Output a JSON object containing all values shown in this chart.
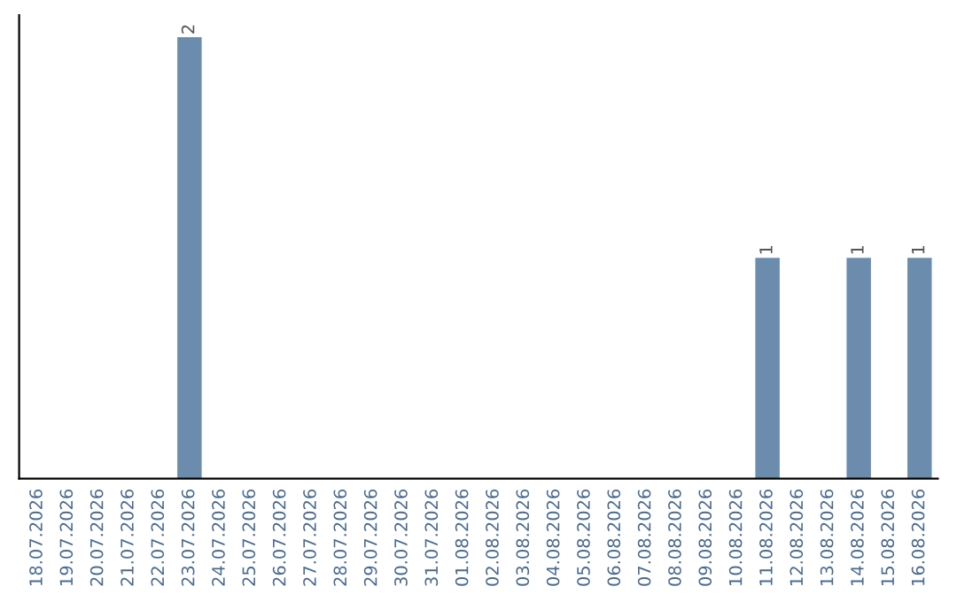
{
  "chart_data": {
    "type": "bar",
    "categories": [
      "18.07.2026",
      "19.07.2026",
      "20.07.2026",
      "21.07.2026",
      "22.07.2026",
      "23.07.2026",
      "24.07.2026",
      "25.07.2026",
      "26.07.2026",
      "27.07.2026",
      "28.07.2026",
      "29.07.2026",
      "30.07.2026",
      "31.07.2026",
      "01.08.2026",
      "02.08.2026",
      "03.08.2026",
      "04.08.2026",
      "05.08.2026",
      "06.08.2026",
      "07.08.2026",
      "08.08.2026",
      "09.08.2026",
      "10.08.2026",
      "11.08.2026",
      "12.08.2026",
      "13.08.2026",
      "14.08.2026",
      "15.08.2026",
      "16.08.2026"
    ],
    "values": [
      0,
      0,
      0,
      0,
      0,
      2,
      0,
      0,
      0,
      0,
      0,
      0,
      0,
      0,
      0,
      0,
      0,
      0,
      0,
      0,
      0,
      0,
      0,
      0,
      1,
      0,
      0,
      1,
      0,
      1
    ],
    "color": "#6b8cac",
    "value_labels": [
      null,
      null,
      null,
      null,
      null,
      "2",
      null,
      null,
      null,
      null,
      null,
      null,
      null,
      null,
      null,
      null,
      null,
      null,
      null,
      null,
      null,
      null,
      null,
      null,
      "1",
      null,
      null,
      "1",
      null,
      "1"
    ],
    "grid": false,
    "legend": false
  }
}
